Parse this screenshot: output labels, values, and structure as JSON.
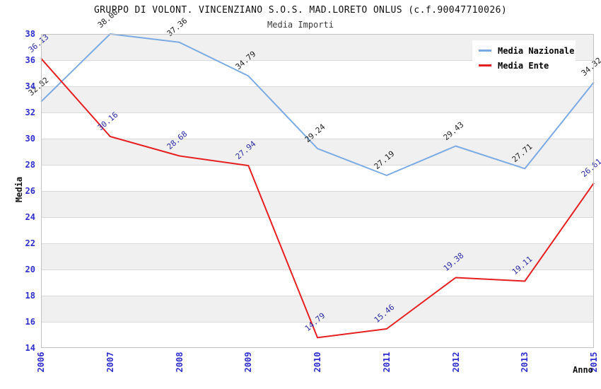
{
  "chart_data": {
    "type": "line",
    "title": "GRUPPO DI VOLONT. VINCENZIANO S.O.S. MAD.LORETO ONLUS (c.f.90047710026)",
    "subtitle": "Media Importi",
    "categories": [
      "2006",
      "2007",
      "2008",
      "2009",
      "2010",
      "2011",
      "2012",
      "2013",
      "2015"
    ],
    "series": [
      {
        "name": "Media Nazionale",
        "color": "#7cabe4",
        "label_color": "#1f1f1f",
        "values": [
          32.82,
          38.0,
          37.36,
          34.79,
          29.24,
          27.19,
          29.43,
          27.71,
          34.32
        ]
      },
      {
        "name": "Media Ente",
        "color": "#e62020",
        "label_color": "#2b2ba6",
        "values": [
          36.13,
          30.16,
          28.68,
          27.94,
          14.79,
          15.46,
          19.38,
          19.11,
          26.61
        ]
      }
    ],
    "xlabel": "Anno",
    "ylabel": "Media",
    "ylim": [
      14,
      38
    ],
    "ytick_step": 2,
    "grid": true,
    "band_colors": [
      "#f0f0f0",
      "#ffffff"
    ],
    "tick_label_color": "#2e2ecc",
    "legend_position": "top-right"
  }
}
